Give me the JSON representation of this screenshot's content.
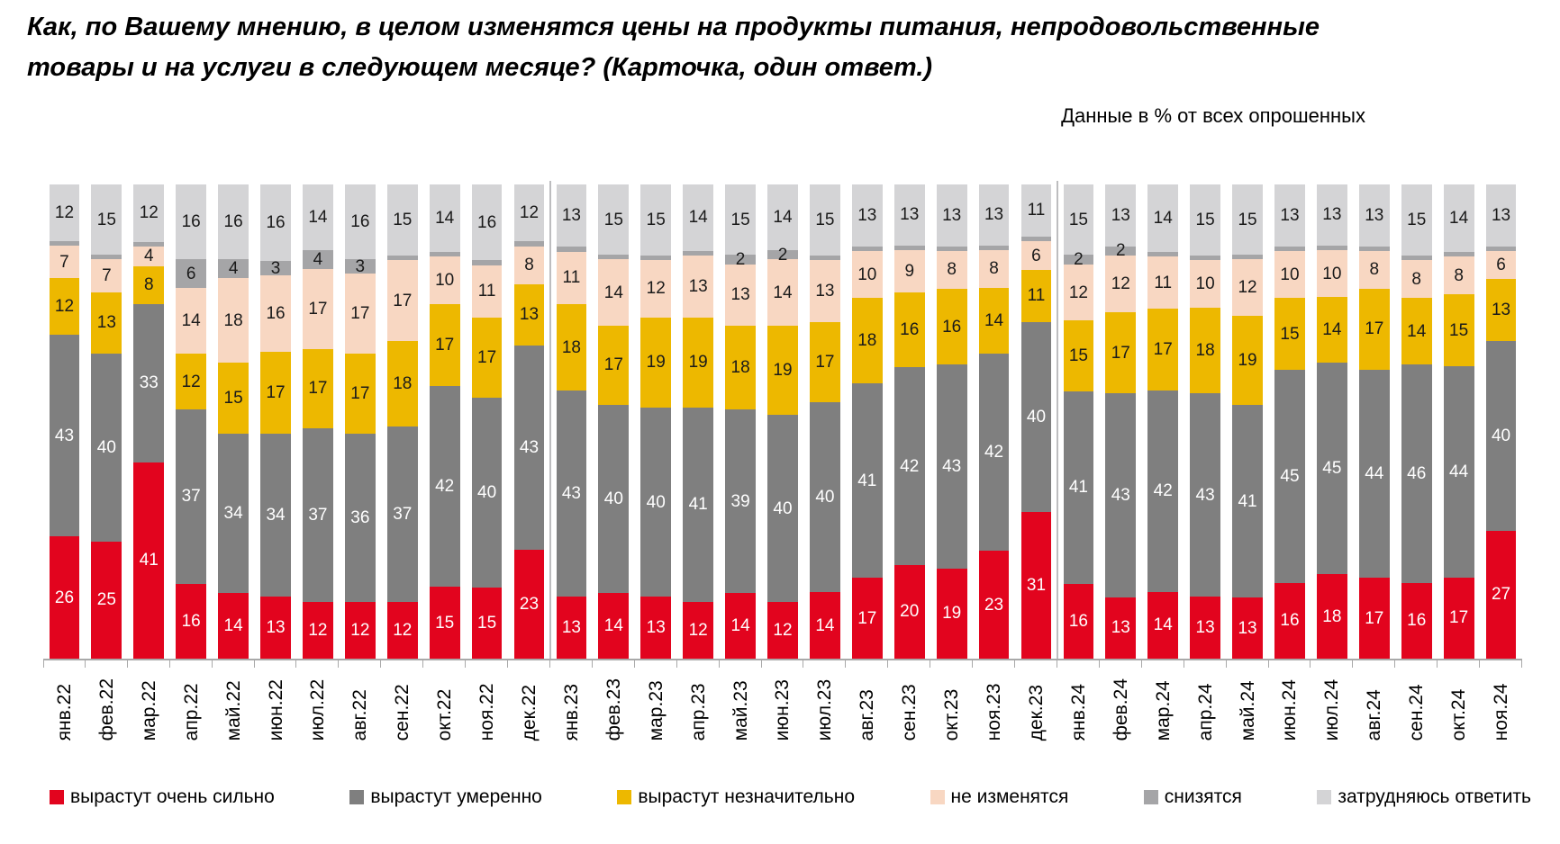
{
  "title": {
    "line1": "Как, по Вашему мнению, в целом изменятся цены на продукты питания, непродовольственные",
    "line2": "товары и на услуги в следующем месяце? (Карточка, один ответ.)"
  },
  "subtitle": "Данные в % от всех опрошенных",
  "chart_data": {
    "type": "bar",
    "stacked": true,
    "unit": "%",
    "grid": false,
    "legend_position": "bottom",
    "group_separators_after_index": [
      11,
      23
    ],
    "categories": [
      "янв.22",
      "фев.22",
      "мар.22",
      "апр.22",
      "май.22",
      "июн.22",
      "июл.22",
      "авг.22",
      "сен.22",
      "окт.22",
      "ноя.22",
      "дек.22",
      "янв.23",
      "фев.23",
      "мар.23",
      "апр.23",
      "май.23",
      "июн.23",
      "июл.23",
      "авг.23",
      "сен.23",
      "окт.23",
      "ноя.23",
      "дек.23",
      "янв.24",
      "фев.24",
      "мар.24",
      "апр.24",
      "май.24",
      "июн.24",
      "июл.24",
      "авг.24",
      "сен.24",
      "окт.24",
      "ноя.24"
    ],
    "series": [
      {
        "name": "вырастут очень сильно",
        "color": "#e2041e",
        "number_color": "#ffffff",
        "values": [
          26,
          25,
          41,
          16,
          14,
          13,
          12,
          12,
          12,
          15,
          15,
          23,
          13,
          14,
          13,
          12,
          14,
          12,
          14,
          17,
          20,
          19,
          23,
          31,
          16,
          13,
          14,
          13,
          13,
          16,
          18,
          17,
          16,
          17,
          27
        ]
      },
      {
        "name": "вырастут умеренно",
        "color": "#7f7f7f",
        "number_color": "#ffffff",
        "values": [
          43,
          40,
          33,
          37,
          34,
          34,
          37,
          36,
          37,
          42,
          40,
          43,
          43,
          40,
          40,
          41,
          39,
          40,
          40,
          41,
          42,
          43,
          42,
          40,
          41,
          43,
          42,
          43,
          41,
          45,
          45,
          44,
          46,
          44,
          40
        ]
      },
      {
        "name": "вырастут незначительно",
        "color": "#edb800",
        "number_color": "#1a1a1a",
        "values": [
          12,
          13,
          8,
          12,
          15,
          17,
          17,
          17,
          18,
          17,
          17,
          13,
          18,
          17,
          19,
          19,
          18,
          19,
          17,
          18,
          16,
          16,
          14,
          11,
          15,
          17,
          17,
          18,
          19,
          15,
          14,
          17,
          14,
          15,
          13
        ]
      },
      {
        "name": "не изменятся",
        "color": "#f8d7c2",
        "number_color": "#1a1a1a",
        "values": [
          7,
          7,
          4,
          14,
          18,
          16,
          17,
          17,
          17,
          10,
          11,
          8,
          11,
          14,
          12,
          13,
          13,
          14,
          13,
          10,
          9,
          8,
          8,
          6,
          12,
          12,
          11,
          10,
          12,
          10,
          10,
          8,
          8,
          8,
          6
        ]
      },
      {
        "name": "снизятся",
        "color": "#a5a5a7",
        "number_color": "#1a1a1a",
        "values": [
          null,
          null,
          null,
          6,
          4,
          3,
          4,
          3,
          null,
          null,
          null,
          null,
          null,
          null,
          null,
          null,
          2,
          2,
          null,
          null,
          null,
          null,
          null,
          null,
          2,
          2,
          null,
          null,
          null,
          null,
          null,
          null,
          null,
          null,
          null
        ]
      },
      {
        "name": "затрудняюсь ответить",
        "color": "#d4d4d6",
        "number_color": "#1a1a1a",
        "values": [
          12,
          15,
          12,
          16,
          16,
          16,
          14,
          16,
          15,
          14,
          16,
          12,
          13,
          15,
          15,
          14,
          15,
          14,
          15,
          13,
          13,
          13,
          13,
          11,
          15,
          13,
          14,
          15,
          15,
          13,
          13,
          13,
          15,
          14,
          13
        ]
      }
    ]
  }
}
